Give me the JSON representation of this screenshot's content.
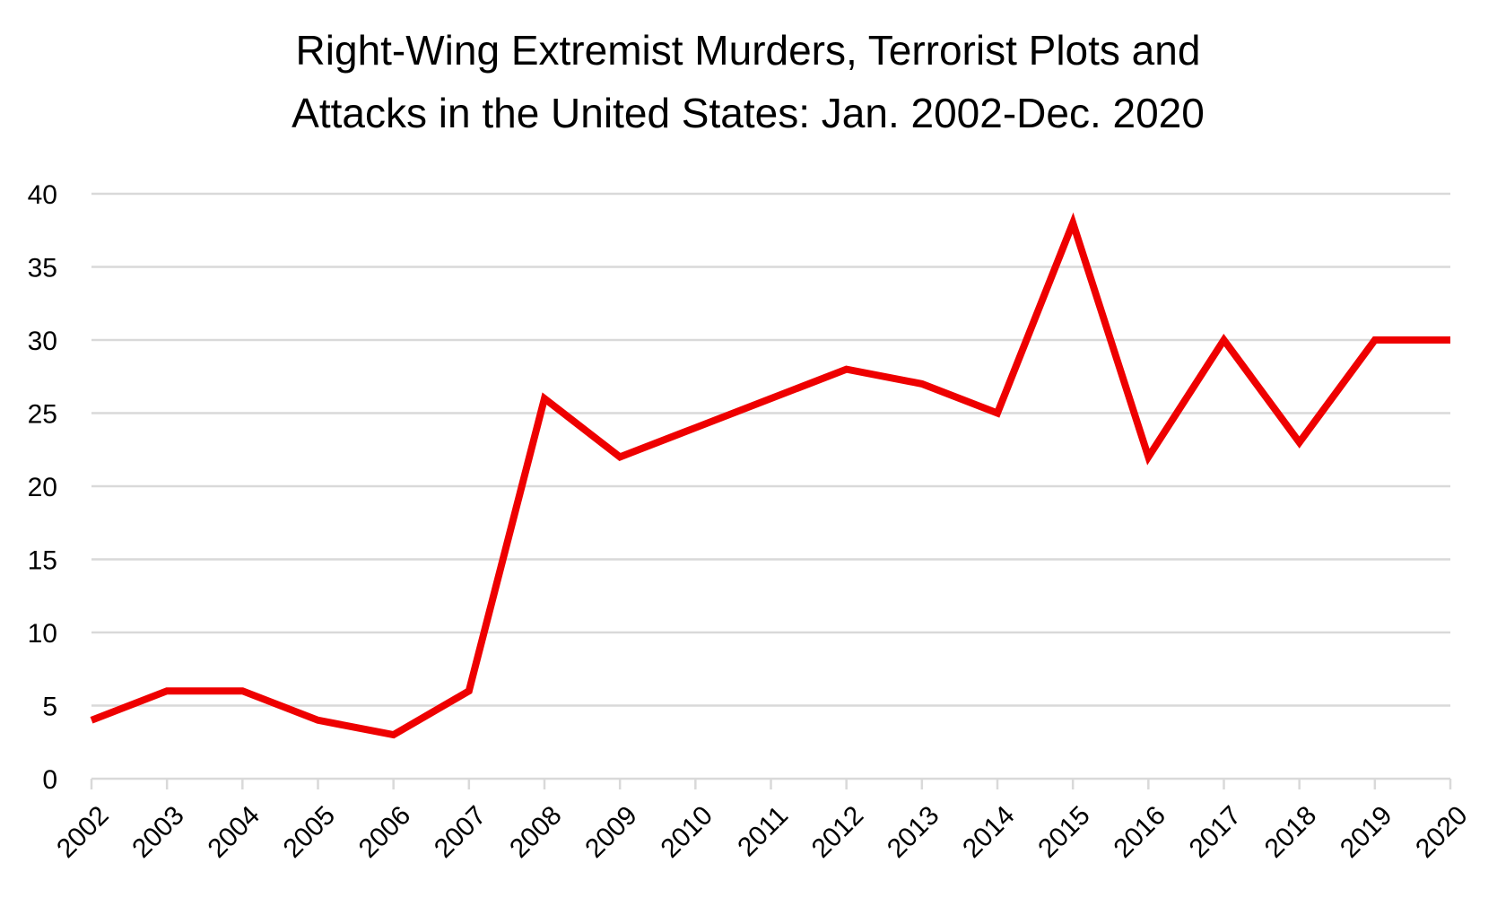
{
  "chart_data": {
    "type": "line",
    "title_lines": [
      "Right-Wing Extremist Murders, Terrorist Plots and",
      "Attacks in the United States: Jan. 2002-Dec. 2020"
    ],
    "categories": [
      "2002",
      "2003",
      "2004",
      "2005",
      "2006",
      "2007",
      "2008",
      "2009",
      "2010",
      "2011",
      "2012",
      "2013",
      "2014",
      "2015",
      "2016",
      "2017",
      "2018",
      "2019",
      "2020"
    ],
    "series": [
      {
        "values": [
          4,
          6,
          6,
          4,
          3,
          6,
          26,
          22,
          24,
          26,
          28,
          27,
          25,
          38,
          22,
          30,
          23,
          30,
          30
        ],
        "color": "#ee0000"
      }
    ],
    "ylim": [
      0,
      40
    ],
    "yticks": [
      0,
      5,
      10,
      15,
      20,
      25,
      30,
      35,
      40
    ],
    "ytick_labels": [
      "0",
      "5",
      "10",
      "15",
      "20",
      "25",
      "30",
      "35",
      "40"
    ],
    "grid": true,
    "legend": "none",
    "xlabel": "",
    "ylabel": ""
  }
}
